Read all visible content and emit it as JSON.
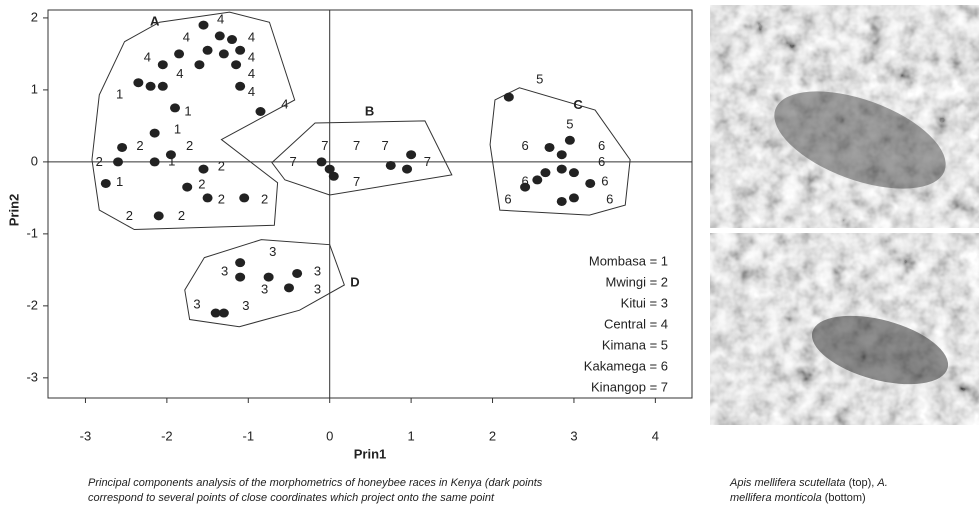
{
  "chart_data": {
    "type": "scatter",
    "xlabel": "Prin1",
    "ylabel": "Prin2",
    "xlim": [
      -3.46,
      4.45
    ],
    "ylim": [
      -3.28,
      2.11
    ],
    "xticks": [
      -3,
      -2,
      -1,
      0,
      1,
      2,
      3,
      4
    ],
    "yticks": [
      -3,
      -2,
      -1,
      0,
      1,
      2
    ],
    "zero_lines": true,
    "legend": "lower right",
    "color": "#222",
    "series": [
      {
        "name": "Mombasa = 1",
        "marker": "1",
        "x": [
          -2.58,
          -1.74,
          -1.87,
          -1.94,
          -2.58
        ],
        "y": [
          0.93,
          0.69,
          0.44,
          0.0,
          -0.29
        ]
      },
      {
        "name": "Mwingi = 2",
        "marker": "2",
        "x": [
          -2.83,
          -2.33,
          -1.72,
          -1.33,
          -1.57,
          -1.33,
          -0.8,
          -2.46,
          -1.82
        ],
        "y": [
          -0.01,
          0.21,
          0.21,
          -0.07,
          -0.32,
          -0.53,
          -0.53,
          -0.76,
          -0.76
        ]
      },
      {
        "name": "Kitui = 3",
        "marker": "3",
        "x": [
          -0.7,
          -1.29,
          -0.8,
          -0.15,
          -0.15,
          -1.63,
          -1.03
        ],
        "y": [
          -1.26,
          -1.53,
          -1.78,
          -1.53,
          -1.78,
          -1.99,
          -2.01
        ]
      },
      {
        "name": "Central = 4",
        "marker": "4",
        "x": [
          -1.34,
          -1.76,
          -2.24,
          -1.84,
          -0.96,
          -0.96,
          -0.96,
          -0.96,
          -0.55
        ],
        "y": [
          1.97,
          1.72,
          1.44,
          1.21,
          1.72,
          1.44,
          1.21,
          0.96,
          0.79
        ]
      },
      {
        "name": "Kimana = 5",
        "marker": "5",
        "x": [
          2.58,
          2.95
        ],
        "y": [
          1.14,
          0.51
        ]
      },
      {
        "name": "Kakamega = 6",
        "marker": "6",
        "x": [
          2.4,
          3.34,
          3.34,
          2.4,
          2.19,
          3.38,
          3.44
        ],
        "y": [
          0.21,
          0.21,
          -0.01,
          -0.28,
          -0.53,
          -0.28,
          -0.53
        ]
      },
      {
        "name": "Kinangop = 7",
        "marker": "7",
        "x": [
          -0.45,
          -0.06,
          0.33,
          0.68,
          1.2,
          0.33
        ],
        "y": [
          -0.01,
          0.21,
          0.21,
          0.21,
          -0.01,
          -0.29
        ]
      }
    ],
    "dark_points": {
      "x": [
        -1.55,
        -1.35,
        -1.2,
        -1.5,
        -1.3,
        -1.1,
        -1.15,
        -1.85,
        -1.6,
        -2.05,
        -2.35,
        -2.2,
        -2.05,
        -1.9,
        -1.1,
        -0.85,
        -2.15,
        -2.55,
        -2.6,
        -2.75,
        -2.15,
        -1.95,
        -1.55,
        -1.75,
        -1.5,
        -1.05,
        -2.1,
        -1.1,
        -1.1,
        -0.75,
        -0.4,
        -0.5,
        -1.4,
        -1.3,
        0,
        0.05,
        -0.1,
        0.75,
        0.95,
        1.0,
        2.2,
        2.95,
        2.85,
        2.7,
        2.65,
        2.55,
        2.4,
        2.85,
        3.0,
        3.2,
        3.0,
        2.85
      ],
      "y": [
        1.9,
        1.75,
        1.7,
        1.55,
        1.5,
        1.55,
        1.35,
        1.5,
        1.35,
        1.35,
        1.1,
        1.05,
        1.05,
        0.75,
        1.05,
        0.7,
        0.4,
        0.2,
        0.0,
        -0.3,
        0.0,
        0.1,
        -0.1,
        -0.35,
        -0.5,
        -0.5,
        -0.75,
        -1.4,
        -1.6,
        -1.6,
        -1.55,
        -1.75,
        -2.1,
        -2.1,
        -0.1,
        -0.2,
        0.0,
        -0.05,
        -0.1,
        0.1,
        0.9,
        0.3,
        0.1,
        0.2,
        -0.15,
        -0.25,
        -0.35,
        -0.1,
        -0.15,
        -0.3,
        -0.5,
        -0.55
      ]
    },
    "groups": [
      {
        "label": "A",
        "x": -2.15,
        "y": 1.94,
        "hull": [
          [
            -2.52,
            1.67
          ],
          [
            -2.09,
            1.94
          ],
          [
            -1.23,
            2.08
          ],
          [
            -0.74,
            1.94
          ],
          [
            -0.43,
            0.86
          ],
          [
            -1.33,
            0.31
          ],
          [
            -0.64,
            -0.29
          ],
          [
            -0.68,
            -0.88
          ],
          [
            -2.4,
            -0.94
          ],
          [
            -2.83,
            -0.67
          ],
          [
            -2.92,
            0.03
          ],
          [
            -2.83,
            0.93
          ]
        ]
      },
      {
        "label": "B",
        "x": 0.49,
        "y": 0.69,
        "hull": [
          [
            -0.71,
            -0.01
          ],
          [
            -0.18,
            0.54
          ],
          [
            1.17,
            0.57
          ],
          [
            1.5,
            -0.18
          ],
          [
            0,
            -0.46
          ],
          [
            -0.55,
            -0.25
          ]
        ]
      },
      {
        "label": "C",
        "x": 3.05,
        "y": 0.78,
        "hull": [
          [
            2.03,
            0.86
          ],
          [
            2.33,
            1.03
          ],
          [
            3.26,
            0.72
          ],
          [
            3.69,
            0.03
          ],
          [
            3.63,
            -0.6
          ],
          [
            3.19,
            -0.74
          ],
          [
            2.09,
            -0.67
          ],
          [
            1.97,
            0.24
          ]
        ]
      },
      {
        "label": "D",
        "x": 0.31,
        "y": -1.68,
        "hull": [
          [
            -1.54,
            -1.33
          ],
          [
            -0.84,
            -1.08
          ],
          [
            0,
            -1.15
          ],
          [
            0.18,
            -1.71
          ],
          [
            -0.37,
            -2.06
          ],
          [
            -1.11,
            -2.29
          ],
          [
            -1.72,
            -2.19
          ],
          [
            -1.78,
            -1.78
          ]
        ]
      }
    ]
  },
  "figure_caption": [
    [
      {
        "text": "Principal components analysis of the morphometrics of honeybee races in Kenya (dark points",
        "italic": true
      }
    ],
    [
      {
        "text": "correspond to several points of close coordinates which project onto the same point",
        "italic": true
      }
    ]
  ],
  "photo_caption": [
    [
      {
        "text": "Apis mellifera scutellata",
        "italic": true
      },
      {
        "text": " (top), ",
        "italic": false
      },
      {
        "text": "A.",
        "italic": true
      }
    ],
    [
      {
        "text": "mellifera monticola",
        "italic": true
      },
      {
        "text": " (bottom)",
        "italic": false
      }
    ]
  ]
}
